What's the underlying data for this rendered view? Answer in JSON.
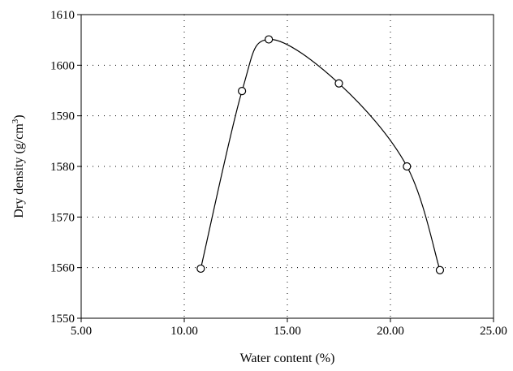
{
  "chart_data": {
    "type": "line",
    "title": "",
    "xlabel": "Water content (%)",
    "ylabel_main": "Dry density (g/cm",
    "ylabel_sup": "3",
    "ylabel_close": ")",
    "xlim": [
      5,
      25
    ],
    "ylim": [
      1550,
      1610
    ],
    "x_ticks": [
      5,
      10,
      15,
      20,
      25
    ],
    "x_tick_labels": [
      "5.00",
      "10.00",
      "15.00",
      "20.00",
      "25.00"
    ],
    "y_ticks": [
      1550,
      1560,
      1570,
      1580,
      1590,
      1600,
      1610
    ],
    "y_tick_labels": [
      "1550",
      "1560",
      "1570",
      "1580",
      "1590",
      "1600",
      "1610"
    ],
    "grid": "dotted",
    "marker": "open-circle",
    "series": [
      {
        "x": [
          10.8,
          12.8,
          14.1,
          17.5,
          20.8,
          22.4
        ],
        "y": [
          1559.8,
          1594.9,
          1605.1,
          1596.4,
          1580.0,
          1559.5
        ]
      }
    ],
    "colors": {
      "line": "#000000",
      "grid": "#000000",
      "background": "#ffffff"
    }
  }
}
